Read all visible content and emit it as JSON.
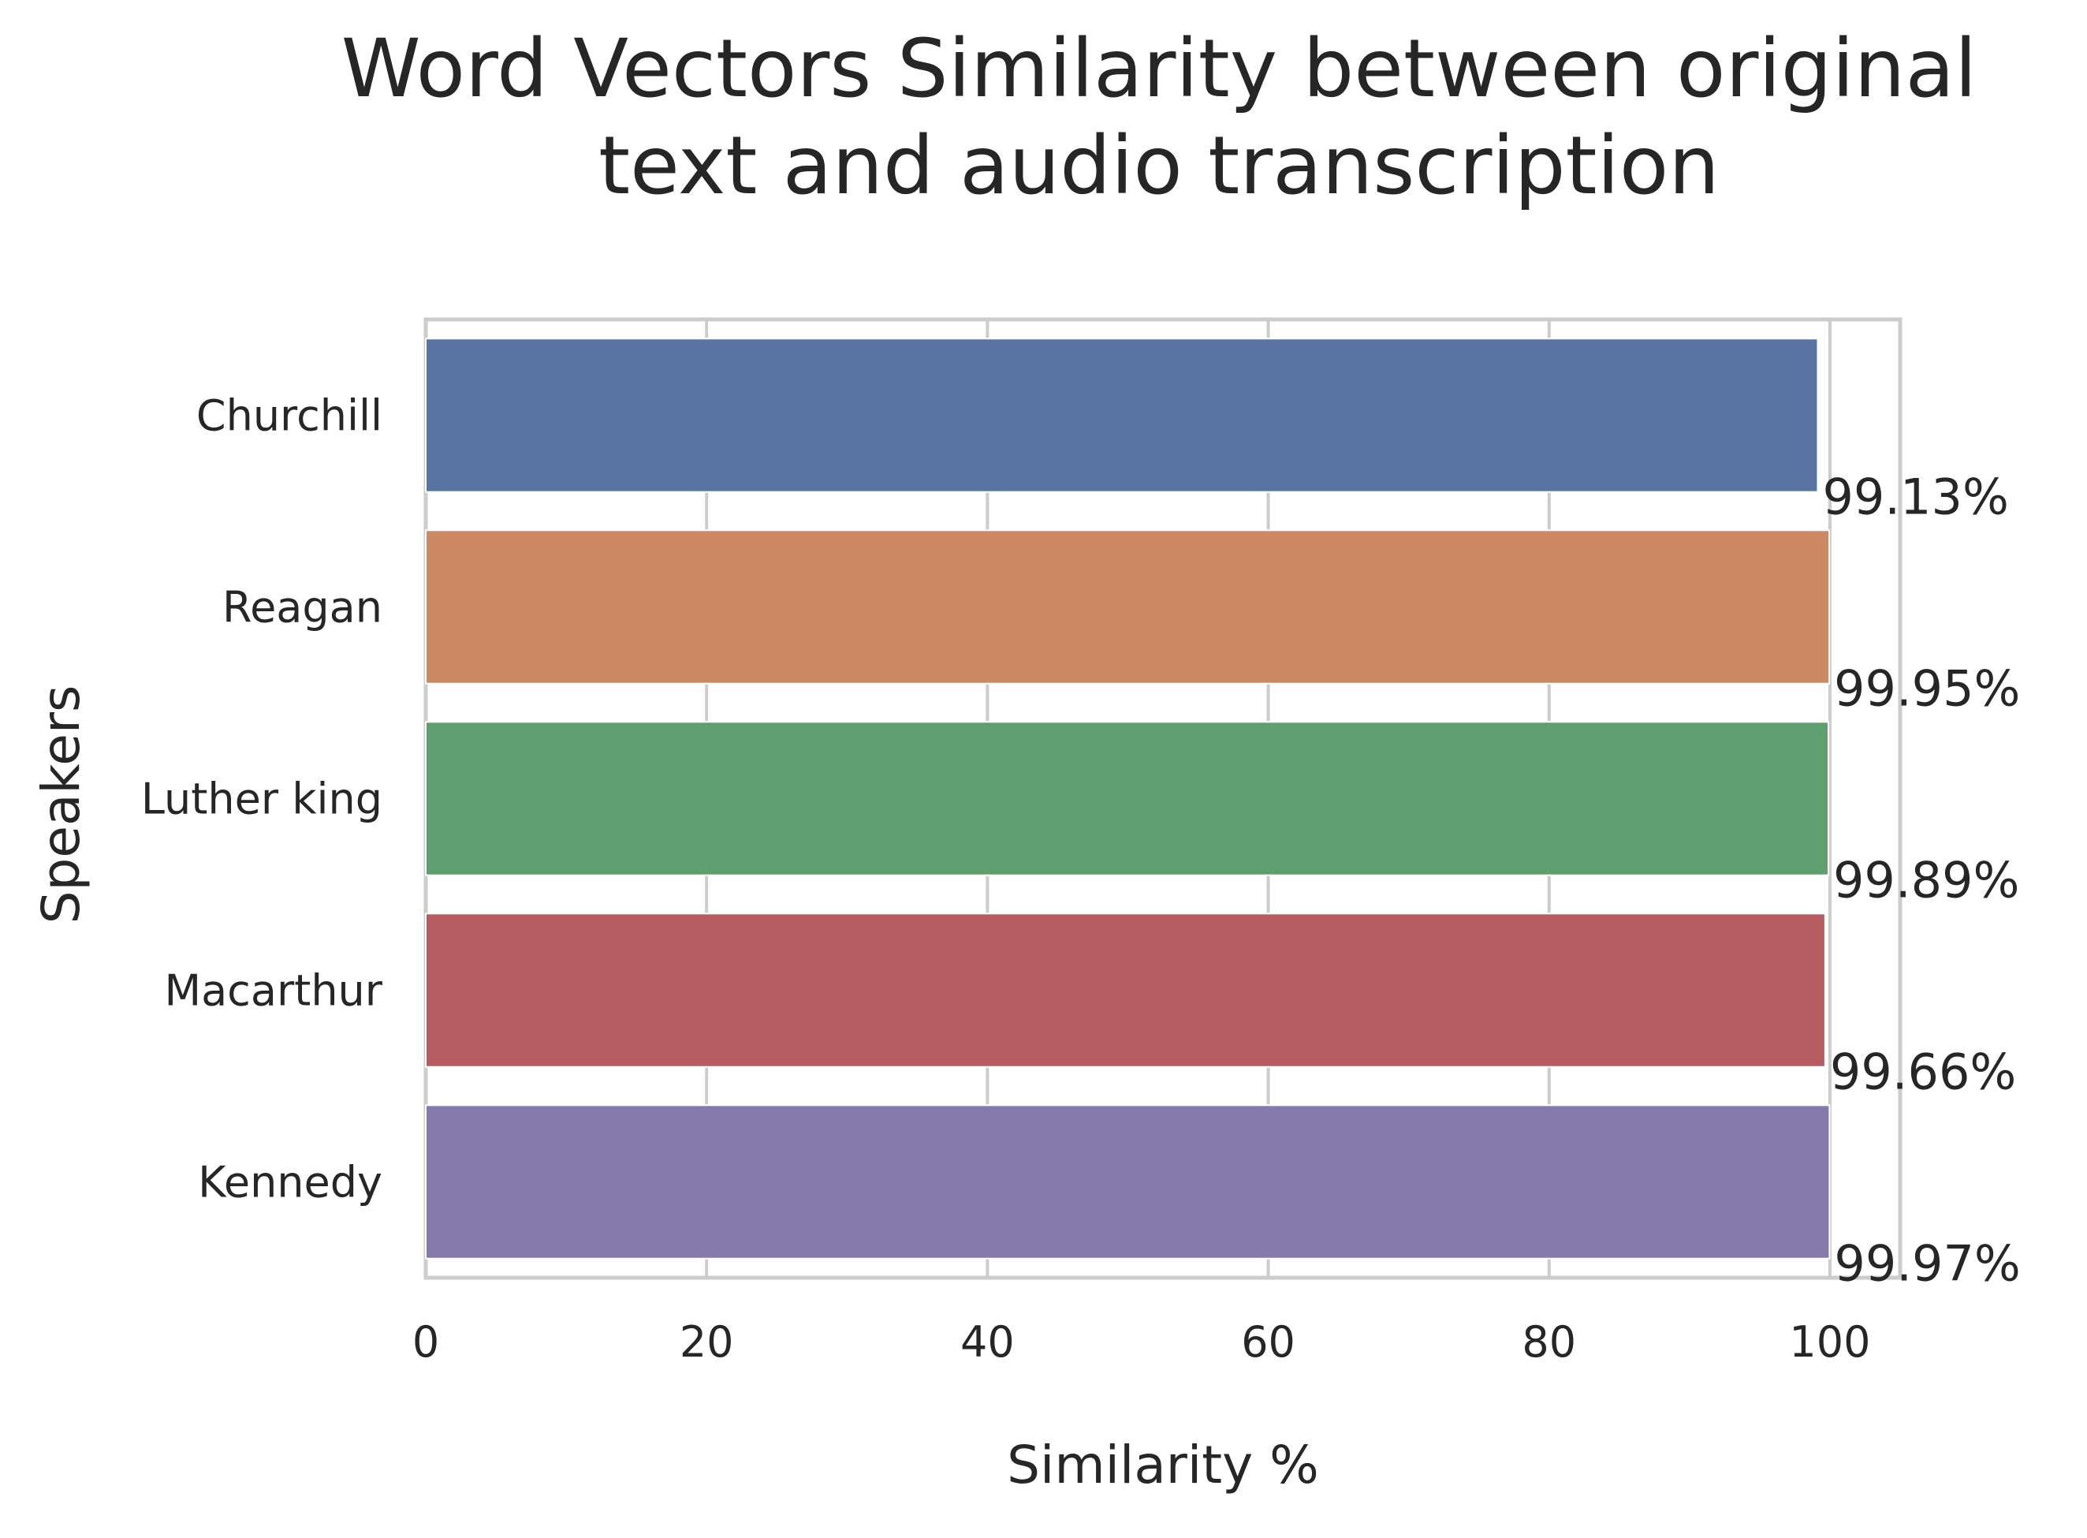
{
  "chart_data": {
    "type": "bar",
    "orientation": "horizontal",
    "title_lines": [
      "Word Vectors Similarity between original",
      "text and audio transcription"
    ],
    "xlabel": "Similarity %",
    "ylabel": "Speakers",
    "xlim": [
      0,
      105
    ],
    "xticks": [
      0,
      20,
      40,
      60,
      80,
      100
    ],
    "grid": "x",
    "categories": [
      "Churchill",
      "Reagan",
      "Luther king",
      "Macarthur",
      "Kennedy"
    ],
    "values": [
      99.13,
      99.95,
      99.89,
      99.66,
      99.97
    ],
    "data_labels": [
      "99.13%",
      "99.95%",
      "99.89%",
      "99.66%",
      "99.97%"
    ],
    "colors": [
      "#5975a4",
      "#cc8963",
      "#5f9e6e",
      "#b55d60",
      "#857aab"
    ]
  }
}
